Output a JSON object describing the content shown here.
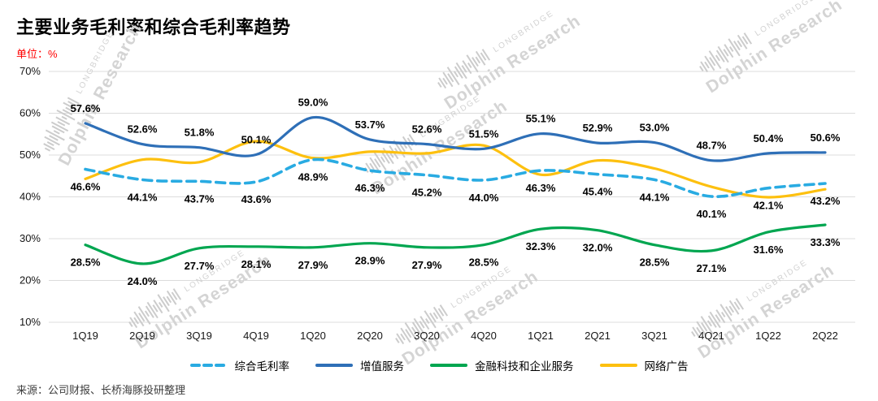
{
  "chart_data": {
    "type": "line",
    "title": "主要业务毛利率和综合毛利率趋势",
    "unit_label": "单位：%",
    "categories": [
      "1Q19",
      "2Q19",
      "3Q19",
      "4Q19",
      "1Q20",
      "2Q20",
      "3Q20",
      "4Q20",
      "1Q21",
      "2Q21",
      "3Q21",
      "4Q21",
      "1Q22",
      "2Q22"
    ],
    "ylim": [
      10,
      70
    ],
    "ytick_step": 10,
    "ytick_suffix": "%",
    "grid": true,
    "legend_position": "bottom",
    "series": [
      {
        "key": "overall-gross-margin",
        "name": "综合毛利率",
        "color": "#29ABE2",
        "dash": true,
        "show_labels": true,
        "label_side": "below",
        "values": [
          46.6,
          44.1,
          43.7,
          43.6,
          48.9,
          46.3,
          45.2,
          44.0,
          46.3,
          45.4,
          44.1,
          40.1,
          42.1,
          43.2
        ]
      },
      {
        "key": "value-added-services",
        "name": "增值服务",
        "color": "#2E6FB7",
        "dash": false,
        "show_labels": true,
        "label_side": "above",
        "values": [
          57.6,
          52.6,
          51.8,
          50.1,
          59.0,
          53.7,
          52.6,
          51.5,
          55.1,
          52.9,
          53.0,
          48.7,
          50.4,
          50.6
        ]
      },
      {
        "key": "fintech-business-services",
        "name": "金融科技和企业服务",
        "color": "#00A650",
        "dash": false,
        "show_labels": true,
        "label_side": "below",
        "values": [
          28.5,
          24.0,
          27.7,
          28.1,
          27.9,
          28.9,
          27.9,
          28.5,
          32.3,
          32.0,
          28.5,
          27.1,
          31.6,
          33.3
        ]
      },
      {
        "key": "online-advertising",
        "name": "网络广告",
        "color": "#FDC00F",
        "dash": false,
        "show_labels": false,
        "label_side": "above",
        "values_estimated": true,
        "values": [
          44.3,
          48.9,
          48.3,
          53.3,
          49.3,
          50.8,
          50.4,
          52.3,
          45.3,
          48.7,
          46.8,
          42.4,
          39.9,
          41.8
        ]
      }
    ]
  },
  "watermark": {
    "brand": "LONGBRIDGE",
    "name": "Dolphin Research"
  },
  "footer": {
    "source": "来源：公司财报、长桥海豚投研整理"
  }
}
